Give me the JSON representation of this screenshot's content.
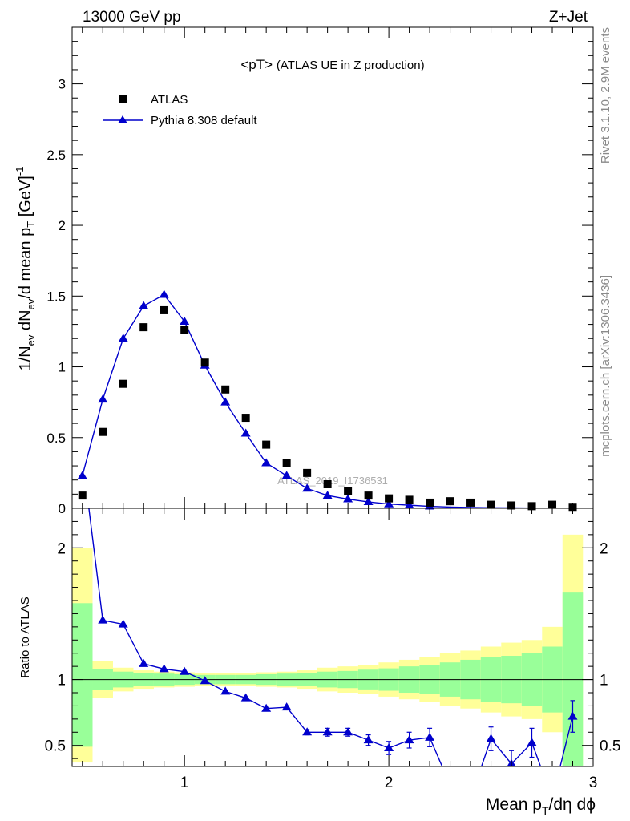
{
  "header": {
    "left": "13000 GeV pp",
    "right": "Z+Jet"
  },
  "plot_title": "<pT>",
  "plot_subtitle": "(ATLAS UE in Z production)",
  "side_text_top": "Rivet 3.1.10,  2.9M events",
  "side_text_bottom": "mcplots.cern.ch [arXiv:1306.3436]",
  "watermark": "ATLAS_2019_I1736531",
  "top_ylabel": "1/N_ev dN_ev/d mean p_T [GeV]^-1",
  "bottom_ylabel": "Ratio to ATLAS",
  "xlabel": "Mean p_T/dη dϕ",
  "legend": [
    {
      "label": "ATLAS",
      "marker": "square",
      "color": "#000000"
    },
    {
      "label": "Pythia 8.308 default",
      "marker": "triangle",
      "color": "#0000cc"
    }
  ],
  "colors": {
    "data": "#000000",
    "mc": "#0000cc",
    "band_green": "#99ff99",
    "band_yellow": "#ffff99"
  },
  "chart_data": [
    {
      "type": "scatter",
      "panel": "main",
      "xlim": [
        0.45,
        3.0
      ],
      "ylim": [
        0,
        3.4
      ],
      "x_ticks": [
        1,
        2,
        3
      ],
      "y_ticks": [
        0,
        0.5,
        1,
        1.5,
        2,
        2.5,
        3
      ],
      "y_tick_labels": [
        "0",
        "0.5",
        "1",
        "1.5",
        "2",
        "2.5",
        "3"
      ],
      "x": [
        0.5,
        0.6,
        0.7,
        0.8,
        0.9,
        1.0,
        1.1,
        1.2,
        1.3,
        1.4,
        1.5,
        1.6,
        1.7,
        1.8,
        1.9,
        2.0,
        2.1,
        2.2,
        2.3,
        2.4,
        2.5,
        2.6,
        2.7,
        2.8,
        2.9
      ],
      "series": [
        {
          "name": "ATLAS",
          "values": [
            0.09,
            0.54,
            0.88,
            1.28,
            1.4,
            1.26,
            1.03,
            0.84,
            0.64,
            0.45,
            0.32,
            0.25,
            0.17,
            0.12,
            0.09,
            0.07,
            0.06,
            0.04,
            0.05,
            0.04,
            0.025,
            0.02,
            0.015,
            0.025,
            0.01
          ]
        },
        {
          "name": "Pythia 8.308 default",
          "values": [
            0.23,
            0.77,
            1.2,
            1.43,
            1.51,
            1.32,
            1.01,
            0.75,
            0.53,
            0.32,
            0.23,
            0.14,
            0.09,
            0.065,
            0.045,
            0.03,
            0.022,
            0.014,
            0.009,
            0.006,
            0.004,
            0.003,
            0.002,
            0.0015,
            0.001
          ]
        }
      ]
    },
    {
      "type": "line",
      "panel": "ratio",
      "xlim": [
        0.45,
        3.0
      ],
      "ylim": [
        0.34,
        2.3
      ],
      "x_ticks": [
        1,
        2,
        3
      ],
      "x_tick_labels": [
        "1",
        "2",
        "3"
      ],
      "y_ticks": [
        0.5,
        1,
        2
      ],
      "y_tick_labels": [
        "0.5",
        "1",
        "2"
      ],
      "reference_line": 1,
      "bin_edges": [
        0.45,
        0.55,
        0.65,
        0.75,
        0.85,
        0.95,
        1.05,
        1.15,
        1.25,
        1.35,
        1.45,
        1.55,
        1.65,
        1.75,
        1.85,
        1.95,
        2.05,
        2.15,
        2.25,
        2.35,
        2.45,
        2.55,
        2.65,
        2.75,
        2.85,
        2.95
      ],
      "band_green_lo": [
        0.49,
        0.92,
        0.94,
        0.95,
        0.955,
        0.96,
        0.965,
        0.965,
        0.965,
        0.96,
        0.955,
        0.95,
        0.94,
        0.935,
        0.925,
        0.915,
        0.9,
        0.89,
        0.87,
        0.85,
        0.83,
        0.82,
        0.8,
        0.75,
        0.34
      ],
      "band_green_hi": [
        1.58,
        1.08,
        1.06,
        1.05,
        1.045,
        1.04,
        1.035,
        1.035,
        1.035,
        1.04,
        1.045,
        1.05,
        1.06,
        1.065,
        1.075,
        1.085,
        1.1,
        1.11,
        1.13,
        1.15,
        1.17,
        1.18,
        1.2,
        1.25,
        1.66
      ],
      "band_yellow_lo": [
        0.37,
        0.86,
        0.91,
        0.93,
        0.94,
        0.945,
        0.95,
        0.95,
        0.95,
        0.945,
        0.94,
        0.93,
        0.91,
        0.9,
        0.89,
        0.87,
        0.85,
        0.83,
        0.8,
        0.78,
        0.75,
        0.72,
        0.7,
        0.6,
        0.34
      ],
      "band_yellow_hi": [
        2.0,
        1.14,
        1.09,
        1.07,
        1.06,
        1.055,
        1.05,
        1.05,
        1.05,
        1.055,
        1.06,
        1.07,
        1.09,
        1.1,
        1.11,
        1.13,
        1.15,
        1.17,
        1.2,
        1.22,
        1.25,
        1.28,
        1.3,
        1.4,
        2.1
      ],
      "x": [
        0.5,
        0.6,
        0.7,
        0.8,
        0.9,
        1.0,
        1.1,
        1.2,
        1.3,
        1.4,
        1.5,
        1.6,
        1.7,
        1.8,
        1.9,
        2.0,
        2.1,
        2.2,
        2.3,
        2.4,
        2.5,
        2.6,
        2.7,
        2.8,
        2.9
      ],
      "series": [
        {
          "name": "Pythia 8.308 default",
          "values": [
            2.7,
            1.45,
            1.42,
            1.12,
            1.08,
            1.06,
            0.99,
            0.91,
            0.86,
            0.78,
            0.79,
            0.6,
            0.6,
            0.6,
            0.54,
            0.48,
            0.54,
            0.56,
            0.2,
            0.1,
            0.55,
            0.36,
            0.52,
            0.1,
            0.72
          ],
          "errors": [
            0.0,
            0.0,
            0.0,
            0.0,
            0.0,
            0.0,
            0.0,
            0.0,
            0.0,
            0.0,
            0.0,
            0.02,
            0.03,
            0.03,
            0.04,
            0.05,
            0.06,
            0.07,
            0.0,
            0.0,
            0.09,
            0.1,
            0.11,
            0.0,
            0.12
          ]
        }
      ]
    }
  ]
}
